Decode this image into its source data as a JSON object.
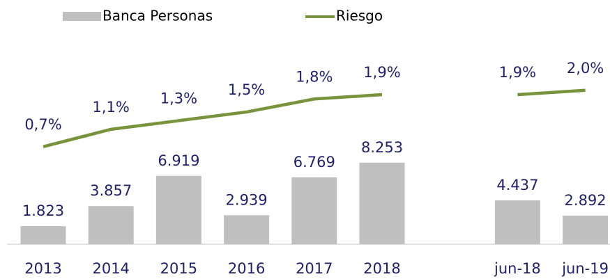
{
  "chart_data": {
    "type": "bar",
    "categories": [
      "2013",
      "2014",
      "2015",
      "2016",
      "2017",
      "2018",
      null,
      "jun-18",
      "jun-19"
    ],
    "series": [
      {
        "name": "Banca Personas",
        "type": "bar",
        "color": "#bfbfbf",
        "values": [
          1823,
          3857,
          6919,
          2939,
          6769,
          8253,
          null,
          4437,
          2892
        ],
        "value_labels": [
          "1.823",
          "3.857",
          "6.919",
          "2.939",
          "6.769",
          "8.253",
          null,
          "4.437",
          "2.892"
        ]
      },
      {
        "name": "Riesgo",
        "type": "line",
        "color": "#77933c",
        "axis": "y2",
        "values": [
          0.7,
          1.1,
          1.3,
          1.5,
          1.8,
          1.9,
          null,
          1.9,
          2.0
        ],
        "value_labels": [
          "0,7%",
          "1,1%",
          "1,3%",
          "1,5%",
          "1,8%",
          "1,9%",
          null,
          "1,9%",
          "2,0%"
        ]
      }
    ],
    "ylim": [
      0,
      20500
    ],
    "y2lim": [
      -1.55,
      3.12
    ],
    "legend": "top"
  }
}
